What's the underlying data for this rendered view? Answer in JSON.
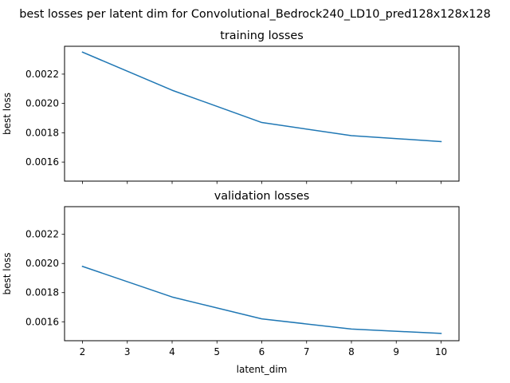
{
  "figure": {
    "suptitle": "best losses per latent dim for Convolutional_Bedrock240_LD10_pred128x128x128"
  },
  "colors": {
    "line": "#1f77b4",
    "axes": "#000000",
    "background": "#ffffff"
  },
  "chart_data": [
    {
      "type": "line",
      "title": "training losses",
      "xlabel": "",
      "ylabel": "best loss",
      "x": [
        2,
        4,
        6,
        8,
        10
      ],
      "series": [
        {
          "values": [
            0.00235,
            0.00209,
            0.00187,
            0.00178,
            0.00174
          ]
        }
      ],
      "xlim": [
        1.6,
        10.4
      ],
      "ylim": [
        0.00147,
        0.00239
      ],
      "xticks": [
        2,
        3,
        4,
        5,
        6,
        7,
        8,
        9,
        10
      ],
      "xticklabels_visible": false,
      "yticks": [
        0.0016,
        0.0018,
        0.002,
        0.0022
      ],
      "yticklabels": [
        "0.0016",
        "0.0018",
        "0.0020",
        "0.0022"
      ],
      "grid": false,
      "legend": "none"
    },
    {
      "type": "line",
      "title": "validation losses",
      "xlabel": "latent_dim",
      "ylabel": "best loss",
      "x": [
        2,
        4,
        6,
        8,
        10
      ],
      "series": [
        {
          "values": [
            0.00198,
            0.00177,
            0.00162,
            0.00155,
            0.00152
          ]
        }
      ],
      "xlim": [
        1.6,
        10.4
      ],
      "ylim": [
        0.00147,
        0.00239
      ],
      "xticks": [
        2,
        3,
        4,
        5,
        6,
        7,
        8,
        9,
        10
      ],
      "xticklabels": [
        "2",
        "3",
        "4",
        "5",
        "6",
        "7",
        "8",
        "9",
        "10"
      ],
      "xticklabels_visible": true,
      "yticks": [
        0.0016,
        0.0018,
        0.002,
        0.0022
      ],
      "yticklabels": [
        "0.0016",
        "0.0018",
        "0.0020",
        "0.0022"
      ],
      "grid": false,
      "legend": "none"
    }
  ]
}
